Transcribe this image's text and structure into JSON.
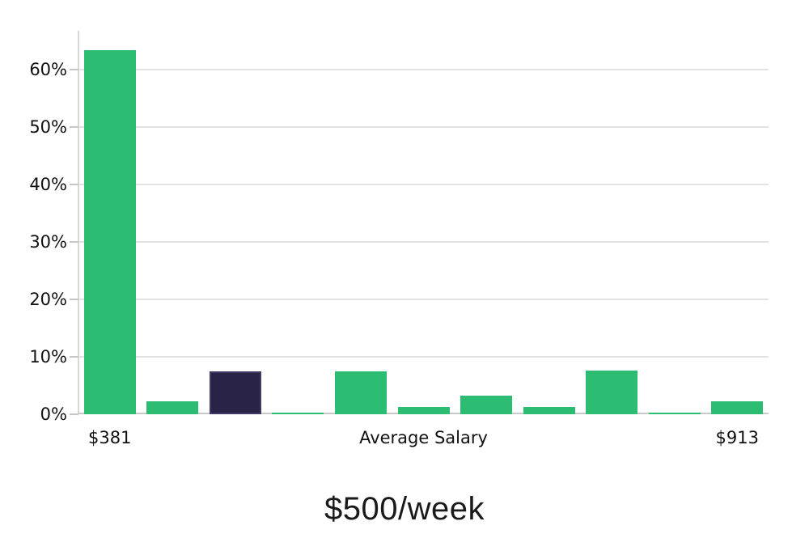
{
  "chart_data": {
    "type": "bar",
    "title": "$500/week",
    "xlabel": "",
    "ylabel": "",
    "grid": true,
    "legend": false,
    "ylim": [
      0,
      66.8
    ],
    "y_ticks": [
      {
        "value": 0,
        "label": "0%"
      },
      {
        "value": 10,
        "label": "10%"
      },
      {
        "value": 20,
        "label": "20%"
      },
      {
        "value": 30,
        "label": "30%"
      },
      {
        "value": 40,
        "label": "40%"
      },
      {
        "value": 50,
        "label": "50%"
      },
      {
        "value": 60,
        "label": "60%"
      }
    ],
    "x_tick_labels": [
      {
        "slot": 0,
        "label": "$381"
      },
      {
        "slot": 5,
        "label": "Average Salary"
      },
      {
        "slot": 10,
        "label": "$913"
      }
    ],
    "values": [
      63.4,
      2.2,
      7.5,
      0.25,
      7.5,
      1.3,
      3.2,
      1.3,
      7.6,
      0.25,
      2.2
    ],
    "highlight_index": 2,
    "colors": {
      "bar_default": "#2cbd72",
      "bar_highlight": "#282347",
      "gridline": "#e2e2e2",
      "axis": "#c9c9c9",
      "text": "#111111"
    }
  }
}
